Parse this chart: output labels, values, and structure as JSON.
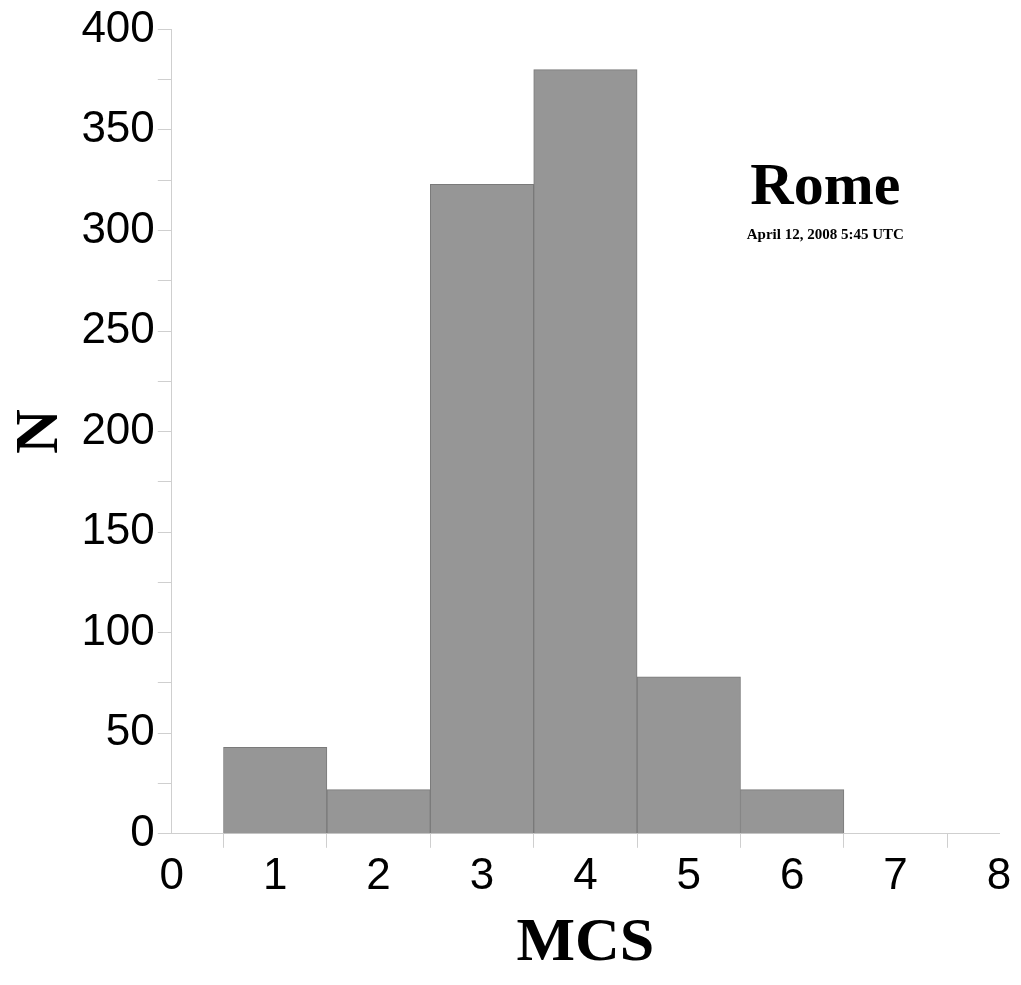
{
  "chart_data": {
    "type": "histogram",
    "title": "Rome",
    "subtitle": "April 12, 2008 5:45 UTC",
    "xlabel": "MCS",
    "ylabel": "N",
    "bins": [
      0.5,
      1.5,
      2.5,
      3.5,
      4.5,
      5.5,
      6.5
    ],
    "values": [
      43,
      22,
      323,
      380,
      78,
      22
    ],
    "color": "#969696",
    "xlim": [
      0,
      8
    ],
    "xticks": [
      0,
      1,
      2,
      3,
      4,
      5,
      6,
      7,
      8
    ],
    "ylim": [
      0,
      400
    ],
    "yticks": [
      0,
      {
        "value": 25,
        "label": null
      },
      50,
      {
        "value": 75,
        "label": null
      },
      100,
      {
        "value": 125,
        "label": null
      },
      150,
      {
        "value": 175,
        "label": null
      },
      200,
      {
        "value": 225,
        "label": null
      },
      250,
      {
        "value": 275,
        "label": null
      },
      300,
      {
        "value": 325,
        "label": null
      },
      350,
      {
        "value": 375,
        "label": null
      },
      400
    ],
    "grid": false,
    "legend": false
  }
}
